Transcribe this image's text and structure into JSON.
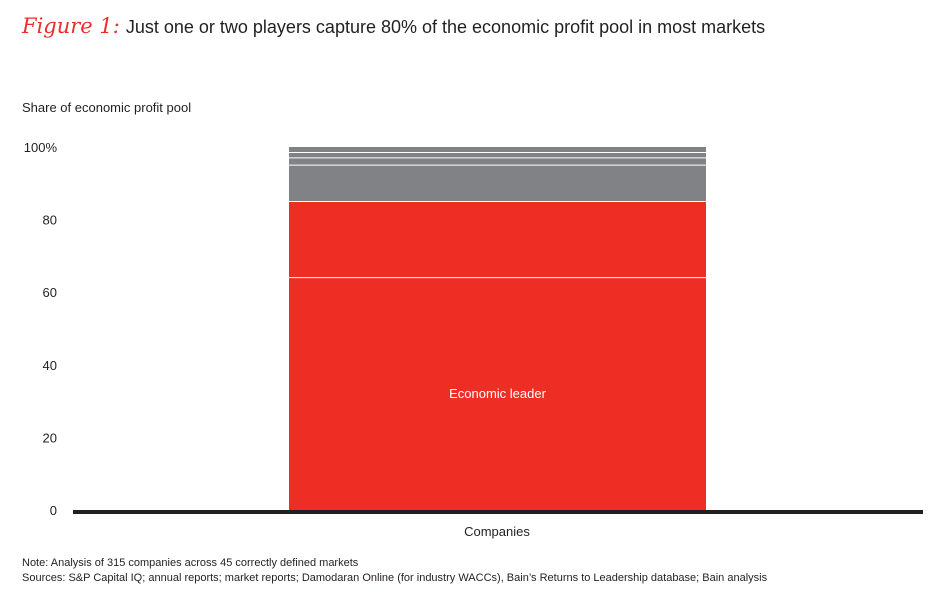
{
  "figure": {
    "label": "Figure 1:",
    "title": "Just one or two players capture 80% of the economic profit pool in most markets"
  },
  "colors": {
    "accent": "#e8302b",
    "leader": "#ee2e24",
    "others": "#818285",
    "axis": "#231f20"
  },
  "chart_data": {
    "type": "bar",
    "stacked": true,
    "ylabel": "Share of economic profit pool",
    "xlabel": "",
    "categories": [
      "Companies"
    ],
    "ylim": [
      0,
      100
    ],
    "y_ticks": [
      "0",
      "20",
      "40",
      "60",
      "80",
      "100%"
    ],
    "y_tick_values": [
      0,
      20,
      40,
      60,
      80,
      100
    ],
    "series": [
      {
        "name": "Economic leader",
        "values": [
          64
        ],
        "color": "#ee2e24"
      },
      {
        "values": [
          21
        ],
        "color": "#ee2e24"
      },
      {
        "values": [
          10
        ],
        "color": "#818285"
      },
      {
        "values": [
          2
        ],
        "color": "#818285"
      },
      {
        "values": [
          1.5
        ],
        "color": "#818285"
      },
      {
        "values": [
          1.5
        ],
        "color": "#818285"
      }
    ],
    "grid": false
  },
  "notes": {
    "note": "Note: Analysis of 315 companies across 45 correctly defined markets",
    "sources": "Sources: S&P Capital IQ; annual reports; market reports; Damodaran Online (for industry WACCs), Bain’s Returns to Leadership database; Bain analysis"
  }
}
